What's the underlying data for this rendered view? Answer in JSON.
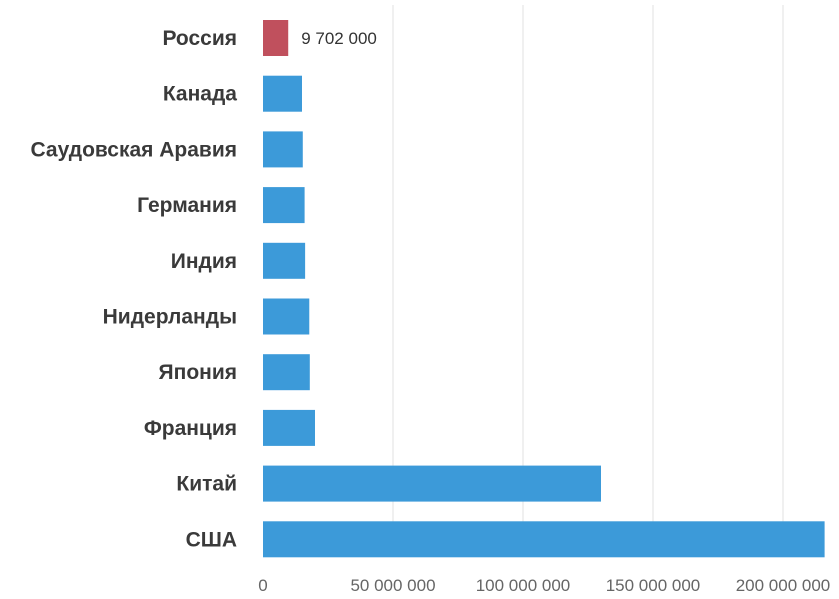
{
  "chart_data": {
    "type": "bar",
    "orientation": "horizontal",
    "categories": [
      "Россия",
      "Канада",
      "Саудовская Аравия",
      "Германия",
      "Индия",
      "Нидерланды",
      "Япония",
      "Франция",
      "Китай",
      "США"
    ],
    "values": [
      9702000,
      15000000,
      15300000,
      16000000,
      16200000,
      17800000,
      18000000,
      20000000,
      130000000,
      216000000
    ],
    "xlim": [
      0,
      215000000
    ],
    "xticks": [
      0,
      50000000,
      100000000,
      150000000,
      200000000
    ],
    "xtick_labels": [
      "0",
      "50 000 000",
      "100 000 000",
      "150 000 000",
      "200 000 000"
    ],
    "data_labels": [
      {
        "category": "Россия",
        "text": "9 702 000"
      }
    ],
    "grid": "vertical",
    "legend": "none",
    "colors": {
      "default_bar": "#3c9ad9",
      "highlight_bar": "#c0505d"
    },
    "highlight_category": "Россия",
    "title": "",
    "xlabel": "",
    "ylabel": ""
  }
}
